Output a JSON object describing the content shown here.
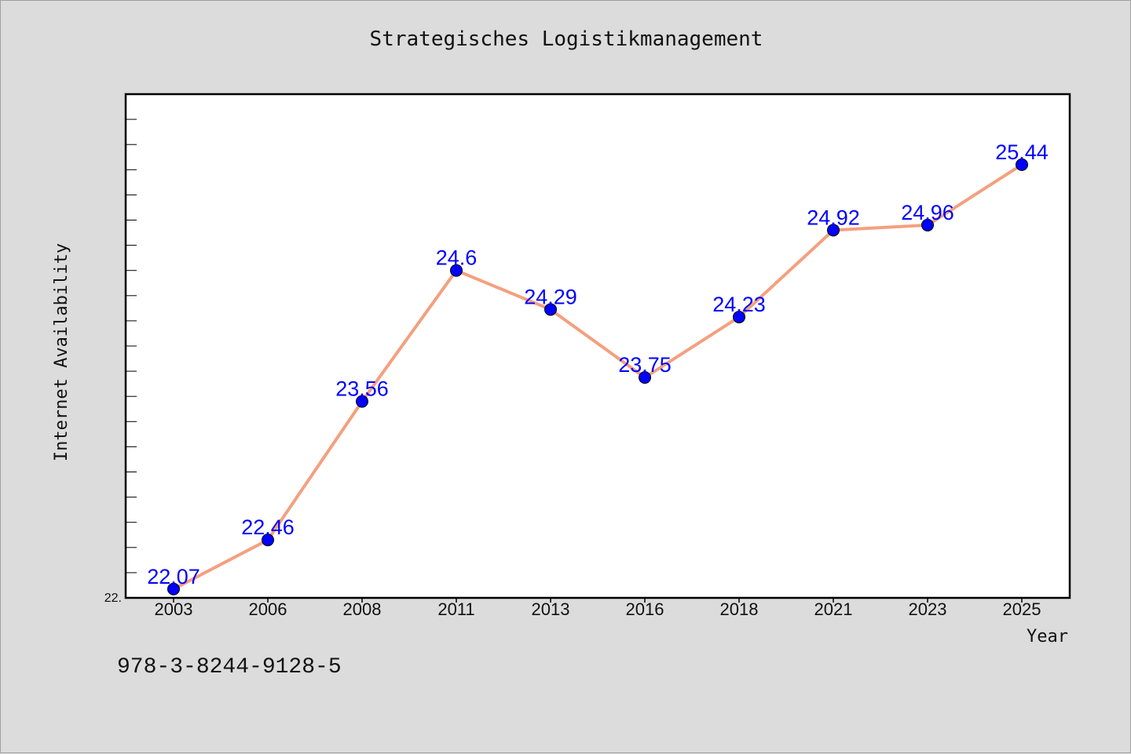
{
  "title": "Strategisches Logistikmanagement",
  "footer_code": "978-3-8244-9128-5",
  "colors": {
    "background": "#dcdcdc",
    "plot_background": "#ffffff",
    "line": "#f4a07f",
    "marker": "#0000ff",
    "label": "#0000ff"
  },
  "chart_data": {
    "type": "line",
    "title": "Strategisches Logistikmanagement",
    "xlabel": "Year",
    "ylabel": "Internet Availability",
    "categories": [
      "2003",
      "2006",
      "2008",
      "2011",
      "2013",
      "2016",
      "2018",
      "2021",
      "2023",
      "2025"
    ],
    "series": [
      {
        "values": [
          22.07,
          22.46,
          23.56,
          24.6,
          24.29,
          23.75,
          24.23,
          24.92,
          24.96,
          25.44
        ]
      }
    ],
    "data_labels": [
      "22.07",
      "22.46",
      "23.56",
      "24.6",
      "24.29",
      "23.75",
      "24.23",
      "24.92",
      "24.96",
      "25.44"
    ],
    "y_tick_label": "22.",
    "ylim": [
      22,
      26
    ],
    "grid": false,
    "legend": "none",
    "marker": "circle"
  }
}
